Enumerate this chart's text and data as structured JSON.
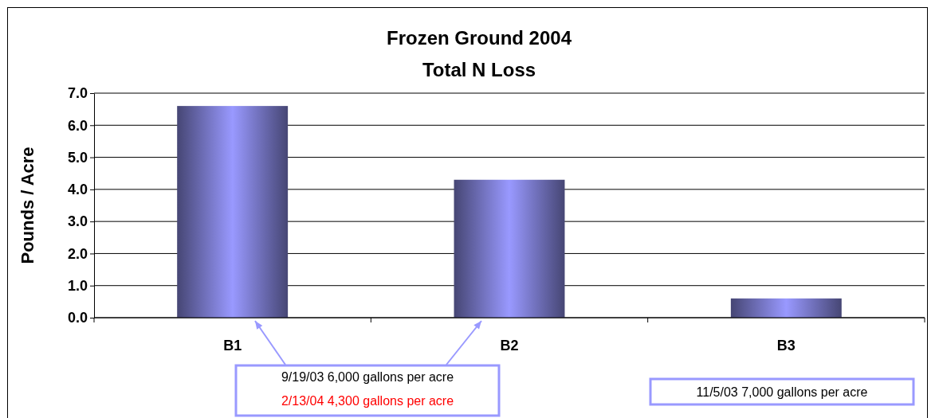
{
  "chart_data": {
    "type": "bar",
    "title": "Frozen Ground 2004\nTotal N Loss",
    "ylabel": "Pounds / Acre",
    "categories": [
      "B1",
      "B2",
      "B3"
    ],
    "values": [
      6.6,
      4.3,
      0.6
    ],
    "color": "#9999ff",
    "ylim": [
      0,
      7
    ],
    "yticks": [
      {
        "value": 0,
        "label": "0.0"
      },
      {
        "value": 1,
        "label": "1.0"
      },
      {
        "value": 2,
        "label": "2.0"
      },
      {
        "value": 3,
        "label": "3.0"
      },
      {
        "value": 4,
        "label": "4.0"
      },
      {
        "value": 5,
        "label": "5.0"
      },
      {
        "value": 6,
        "label": "6.0"
      },
      {
        "value": 7,
        "label": "7.0"
      }
    ],
    "grid": "y",
    "annotations": [
      "9/19/03 6,000 gallons per acre",
      "2/13/04 4,300 gallons per acre",
      "11/5/03 7,000 gallons per acre"
    ]
  }
}
